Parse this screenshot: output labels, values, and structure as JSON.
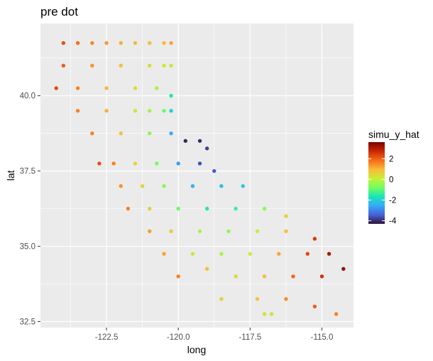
{
  "chart_data": {
    "type": "scatter",
    "title": "pre dot",
    "xlabel": "long",
    "ylabel": "lat",
    "xlim": [
      -124.8,
      -113.9
    ],
    "ylim": [
      32.3,
      42.4
    ],
    "x_ticks": [
      -122.5,
      -120.0,
      -117.5,
      -115.0
    ],
    "x_tick_labels": [
      "-122.5",
      "-120.0",
      "-117.5",
      "-115.0"
    ],
    "y_ticks": [
      32.5,
      35.0,
      37.5,
      40.0
    ],
    "y_tick_labels": [
      "32.5",
      "35.0",
      "37.5",
      "40.0"
    ],
    "grid": true,
    "legend": {
      "title": "simu_y_hat",
      "position": "right",
      "range": [
        -4.3,
        3.6
      ],
      "ticks": [
        2,
        0,
        -2,
        -4
      ],
      "tick_labels": [
        "2",
        "0",
        "-2",
        "-4"
      ],
      "palette": [
        "#30123b",
        "#4662d7",
        "#36aaf9",
        "#1ae4b6",
        "#72fe5e",
        "#c7ef34",
        "#faba39",
        "#f66b19",
        "#c92903",
        "#7a0403"
      ]
    },
    "grid_step_deg": 0.25,
    "series": [
      {
        "points": [
          [
            -124.0,
            41.75,
            2.2
          ],
          [
            -123.5,
            41.75,
            1.8
          ],
          [
            -123.0,
            41.75,
            1.5
          ],
          [
            -122.5,
            41.75,
            1.3
          ],
          [
            -122.0,
            41.75,
            1.1
          ],
          [
            -121.5,
            41.75,
            1.0
          ],
          [
            -121.0,
            41.75,
            0.9
          ],
          [
            -120.5,
            41.75,
            1.0
          ],
          [
            -120.25,
            41.75,
            1.2
          ],
          [
            -124.0,
            41.0,
            2.0
          ],
          [
            -123.0,
            41.0,
            1.4
          ],
          [
            -122.0,
            41.0,
            0.9
          ],
          [
            -121.0,
            41.0,
            0.4
          ],
          [
            -120.5,
            41.0,
            0.2
          ],
          [
            -120.25,
            41.0,
            0.3
          ],
          [
            -124.25,
            40.25,
            2.3
          ],
          [
            -123.5,
            40.25,
            1.6
          ],
          [
            -122.5,
            40.25,
            1.0
          ],
          [
            -121.5,
            40.25,
            0.4
          ],
          [
            -120.75,
            40.25,
            -0.3
          ],
          [
            -120.25,
            40.0,
            -1.6
          ],
          [
            -123.5,
            39.5,
            1.6
          ],
          [
            -122.5,
            39.5,
            1.1
          ],
          [
            -121.5,
            39.5,
            0.2
          ],
          [
            -121.0,
            39.5,
            -0.3
          ],
          [
            -120.5,
            39.5,
            -0.9
          ],
          [
            -120.25,
            39.5,
            -2.0
          ],
          [
            -123.0,
            38.75,
            1.6
          ],
          [
            -122.0,
            38.75,
            0.8
          ],
          [
            -121.0,
            38.75,
            -0.6
          ],
          [
            -120.25,
            38.75,
            -2.5
          ],
          [
            -119.75,
            38.5,
            -4.1
          ],
          [
            -119.25,
            38.5,
            -4.0
          ],
          [
            -119.0,
            38.25,
            -3.8
          ],
          [
            -122.75,
            37.75,
            2.2
          ],
          [
            -122.25,
            37.75,
            1.6
          ],
          [
            -121.5,
            37.75,
            0.5
          ],
          [
            -120.75,
            37.75,
            -0.8
          ],
          [
            -120.0,
            37.75,
            -2.7
          ],
          [
            -119.25,
            37.75,
            -3.6
          ],
          [
            -118.75,
            37.5,
            -3.5
          ],
          [
            -122.0,
            37.0,
            1.4
          ],
          [
            -121.25,
            37.0,
            0.5
          ],
          [
            -120.5,
            37.0,
            -0.6
          ],
          [
            -119.5,
            37.0,
            -2.4
          ],
          [
            -118.5,
            37.0,
            -2.2
          ],
          [
            -117.75,
            37.0,
            -2.0
          ],
          [
            -121.75,
            36.25,
            1.6
          ],
          [
            -121.0,
            36.25,
            0.6
          ],
          [
            -120.0,
            36.25,
            -0.9
          ],
          [
            -119.0,
            36.25,
            -1.6
          ],
          [
            -118.0,
            36.25,
            -1.4
          ],
          [
            -117.0,
            36.25,
            -0.6
          ],
          [
            -116.25,
            36.0,
            0.6
          ],
          [
            -121.0,
            35.5,
            1.3
          ],
          [
            -120.25,
            35.5,
            0.7
          ],
          [
            -119.25,
            35.5,
            -0.3
          ],
          [
            -118.25,
            35.5,
            -0.5
          ],
          [
            -117.25,
            35.5,
            0.0
          ],
          [
            -116.25,
            35.5,
            0.9
          ],
          [
            -115.25,
            35.25,
            2.5
          ],
          [
            -120.5,
            34.75,
            1.2
          ],
          [
            -119.5,
            34.75,
            0.3
          ],
          [
            -118.5,
            34.75,
            -0.2
          ],
          [
            -117.5,
            34.75,
            0.2
          ],
          [
            -116.5,
            34.75,
            1.2
          ],
          [
            -115.5,
            34.75,
            2.3
          ],
          [
            -114.75,
            34.75,
            3.1
          ],
          [
            -120.0,
            34.0,
            1.6
          ],
          [
            -119.0,
            34.25,
            0.9
          ],
          [
            -118.0,
            34.0,
            0.4
          ],
          [
            -117.0,
            34.0,
            0.9
          ],
          [
            -116.0,
            34.0,
            1.9
          ],
          [
            -115.0,
            34.0,
            2.6
          ],
          [
            -114.25,
            34.25,
            3.3
          ],
          [
            -118.5,
            33.25,
            0.6
          ],
          [
            -117.25,
            33.25,
            0.8
          ],
          [
            -116.25,
            33.25,
            1.5
          ],
          [
            -115.25,
            33.0,
            2.0
          ],
          [
            -114.5,
            32.75,
            1.6
          ],
          [
            -116.75,
            32.75,
            0.4
          ],
          [
            -117.0,
            32.75,
            0.3
          ]
        ]
      }
    ]
  }
}
